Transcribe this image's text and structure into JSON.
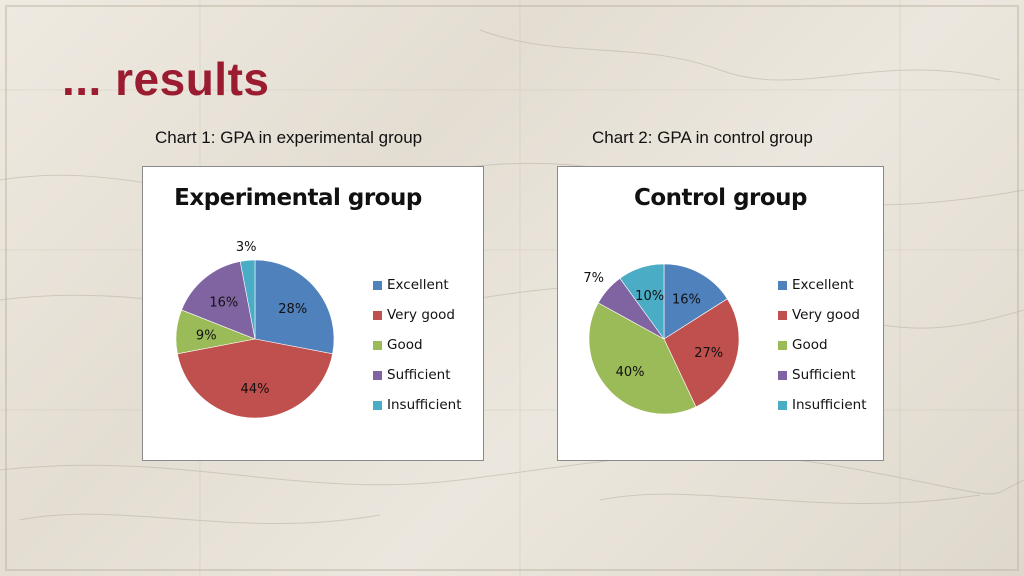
{
  "slide": {
    "title": "... results"
  },
  "captions": {
    "chart1": "Chart 1: GPA in experimental group",
    "chart2": "Chart 2: GPA in control group"
  },
  "colors": {
    "title": "#9b1b30",
    "Excellent": "#4f81bd",
    "Very good": "#c0504d",
    "Good": "#9bbb59",
    "Sufficient": "#8064a2",
    "Insufficient": "#4bacc6"
  },
  "chart_data": [
    {
      "type": "pie",
      "title": "Experimental group",
      "categories": [
        "Excellent",
        "Very good",
        "Good",
        "Sufficient",
        "Insufficient"
      ],
      "values": [
        28,
        44,
        9,
        16,
        3
      ],
      "data_labels": [
        "28%",
        "44%",
        "9%",
        "16%",
        "3%"
      ],
      "legend_position": "right"
    },
    {
      "type": "pie",
      "title": "Control group",
      "categories": [
        "Excellent",
        "Very good",
        "Good",
        "Sufficient",
        "Insufficient"
      ],
      "values": [
        16,
        27,
        40,
        7,
        10
      ],
      "data_labels": [
        "16%",
        "27%",
        "40%",
        "7%",
        "10%"
      ],
      "legend_position": "right"
    }
  ]
}
